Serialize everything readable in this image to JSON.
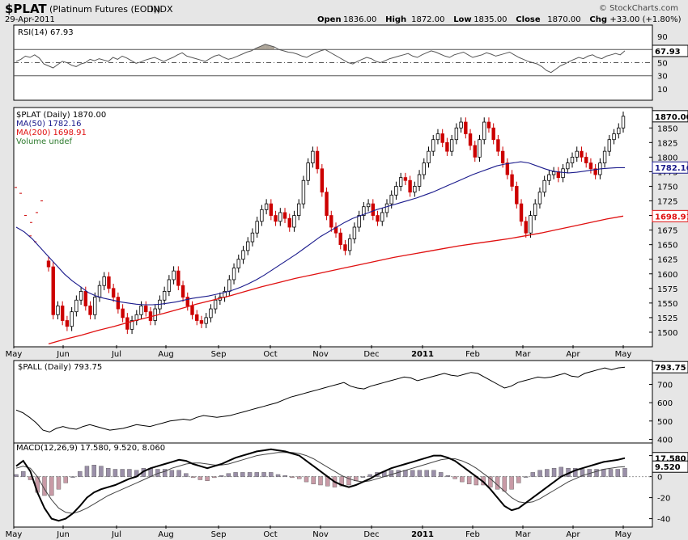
{
  "header": {
    "symbol": "$PLAT",
    "name": "(Platinum Futures (EOD))",
    "exchange": "INDX",
    "date": "29-Apr-2011",
    "source": "© StockCharts.com",
    "ohlc": [
      {
        "label": "Open",
        "value": "1836.00"
      },
      {
        "label": "High",
        "value": "1872.00"
      },
      {
        "label": "Low",
        "value": "1835.00"
      },
      {
        "label": "Close",
        "value": "1870.00"
      },
      {
        "label": "Chg",
        "value": "+33.00 (+1.80%)"
      }
    ]
  },
  "months": [
    "May",
    "Jun",
    "Jul",
    "Aug",
    "Sep",
    "Oct",
    "Nov",
    "Dec",
    "2011",
    "Feb",
    "Mar",
    "Apr",
    "May"
  ],
  "colors": {
    "up": "#000000",
    "down": "#cc0000",
    "ma50": "#1a1a8c",
    "ma200": "#e01010",
    "rsi": "#555555",
    "panel_bg": "#ffffff",
    "page_bg": "#e6e6e6"
  },
  "chart_data": [
    {
      "id": "rsi",
      "type": "line",
      "legend": "RSI(14) 67.93",
      "last_value": "67.93",
      "ylim": [
        0,
        100
      ],
      "ticks": [
        10,
        30,
        50,
        70,
        90
      ],
      "levels": [
        30,
        70
      ],
      "series": [
        {
          "name": "RSI(14)",
          "values": [
            52,
            55,
            60,
            58,
            62,
            57,
            48,
            45,
            42,
            47,
            52,
            50,
            46,
            44,
            48,
            50,
            55,
            53,
            56,
            54,
            52,
            58,
            55,
            60,
            57,
            53,
            49,
            51,
            54,
            56,
            58,
            55,
            52,
            55,
            58,
            62,
            65,
            60,
            58,
            56,
            54,
            52,
            56,
            60,
            62,
            58,
            55,
            57,
            60,
            63,
            66,
            68,
            72,
            75,
            78,
            76,
            74,
            70,
            68,
            66,
            65,
            63,
            60,
            58,
            62,
            65,
            68,
            70,
            66,
            62,
            58,
            54,
            50,
            48,
            52,
            55,
            58,
            56,
            52,
            50,
            53,
            56,
            58,
            60,
            62,
            64,
            60,
            58,
            62,
            65,
            68,
            66,
            63,
            60,
            58,
            62,
            64,
            66,
            62,
            58,
            60,
            62,
            65,
            63,
            60,
            62,
            64,
            66,
            62,
            58,
            55,
            52,
            50,
            48,
            44,
            38,
            35,
            40,
            45,
            48,
            52,
            55,
            58,
            56,
            60,
            62,
            58,
            56,
            60,
            62,
            64,
            62,
            68
          ]
        }
      ]
    },
    {
      "id": "price",
      "type": "candlestick",
      "legend": [
        {
          "text": "$PLAT (Daily) 1870.00",
          "color": "#000000"
        },
        {
          "text": "MA(50) 1782.16",
          "color": "#1a1a8c"
        },
        {
          "text": "MA(200) 1698.91",
          "color": "#e01010"
        },
        {
          "text": "Volume undef",
          "color": "#2d7a2d"
        }
      ],
      "ylim": [
        1475,
        1885
      ],
      "ticks": [
        "1500",
        "1525",
        "1550",
        "1575",
        "1600",
        "1625",
        "1650",
        "1675",
        "1700",
        "1725",
        "1750",
        "1775",
        "1800",
        "1825",
        "1850"
      ],
      "badges": [
        {
          "value": 1870.0,
          "label": "1870.00",
          "color": "#000000"
        },
        {
          "value": 1782.16,
          "label": "1782.16",
          "color": "#1a1a8c"
        },
        {
          "value": 1698.91,
          "label": "1698.91",
          "color": "#e01010"
        }
      ],
      "closes": [
        1612,
        1530,
        1545,
        1520,
        1510,
        1535,
        1555,
        1570,
        1545,
        1530,
        1560,
        1580,
        1595,
        1575,
        1560,
        1540,
        1525,
        1505,
        1520,
        1530,
        1545,
        1535,
        1520,
        1540,
        1555,
        1570,
        1590,
        1605,
        1580,
        1560,
        1545,
        1530,
        1520,
        1515,
        1525,
        1540,
        1555,
        1560,
        1570,
        1590,
        1610,
        1625,
        1640,
        1655,
        1670,
        1690,
        1710,
        1720,
        1700,
        1690,
        1705,
        1695,
        1680,
        1700,
        1720,
        1760,
        1790,
        1810,
        1780,
        1740,
        1700,
        1680,
        1670,
        1650,
        1640,
        1660,
        1680,
        1700,
        1715,
        1720,
        1700,
        1690,
        1705,
        1720,
        1735,
        1750,
        1765,
        1760,
        1740,
        1750,
        1770,
        1790,
        1810,
        1830,
        1840,
        1825,
        1810,
        1830,
        1850,
        1860,
        1840,
        1820,
        1800,
        1830,
        1860,
        1850,
        1830,
        1810,
        1790,
        1770,
        1750,
        1720,
        1690,
        1670,
        1700,
        1720,
        1740,
        1760,
        1770,
        1775,
        1765,
        1780,
        1790,
        1800,
        1810,
        1800,
        1790,
        1780,
        1770,
        1790,
        1810,
        1830,
        1840,
        1850,
        1870
      ],
      "ma50": [
        1680,
        1672,
        1660,
        1645,
        1630,
        1615,
        1600,
        1588,
        1578,
        1568,
        1562,
        1558,
        1555,
        1552,
        1550,
        1548,
        1547,
        1547,
        1548,
        1550,
        1552,
        1555,
        1558,
        1560,
        1562,
        1565,
        1568,
        1572,
        1577,
        1583,
        1590,
        1598,
        1607,
        1616,
        1625,
        1634,
        1644,
        1654,
        1664,
        1672,
        1680,
        1688,
        1695,
        1700,
        1705,
        1710,
        1714,
        1718,
        1722,
        1726,
        1730,
        1735,
        1740,
        1746,
        1752,
        1758,
        1764,
        1770,
        1775,
        1780,
        1785,
        1788,
        1790,
        1792,
        1790,
        1785,
        1780,
        1776,
        1774,
        1773,
        1774,
        1776,
        1778,
        1780,
        1781,
        1782,
        1782
      ],
      "ma200": [
        1480,
        1488,
        1495,
        1503,
        1510,
        1518,
        1525,
        1532,
        1540,
        1548,
        1555,
        1562,
        1570,
        1578,
        1585,
        1592,
        1598,
        1604,
        1610,
        1616,
        1622,
        1628,
        1633,
        1638,
        1643,
        1648,
        1652,
        1656,
        1660,
        1665,
        1670,
        1676,
        1682,
        1688,
        1694,
        1699
      ],
      "closes_start_date": "2010-05-14"
    },
    {
      "id": "pall",
      "type": "line",
      "legend": "$PALL (Daily) 793.75",
      "last_value": "793.75",
      "ylim": [
        380,
        830
      ],
      "ticks": [
        "400",
        "500",
        "600",
        "700"
      ],
      "series": [
        {
          "name": "$PALL (Daily)",
          "values": [
            560,
            545,
            520,
            490,
            450,
            440,
            460,
            470,
            460,
            455,
            470,
            480,
            470,
            460,
            450,
            455,
            460,
            470,
            480,
            475,
            470,
            480,
            490,
            500,
            505,
            510,
            505,
            520,
            530,
            525,
            520,
            525,
            530,
            540,
            550,
            560,
            570,
            580,
            590,
            600,
            615,
            630,
            640,
            650,
            660,
            670,
            680,
            690,
            700,
            710,
            690,
            680,
            675,
            690,
            700,
            710,
            720,
            730,
            740,
            735,
            720,
            730,
            740,
            750,
            760,
            750,
            745,
            755,
            765,
            760,
            740,
            720,
            700,
            680,
            690,
            710,
            720,
            730,
            740,
            735,
            740,
            750,
            760,
            745,
            740,
            760,
            770,
            780,
            790,
            780,
            790,
            793.75
          ]
        }
      ]
    },
    {
      "id": "macd",
      "type": "line",
      "legend": [
        {
          "text": "MACD(12,26,9) 17.580, 9.520, 8.060",
          "color": "#000000"
        }
      ],
      "ylim": [
        -48,
        32
      ],
      "ticks": [
        "20",
        "0",
        "-20",
        "-40"
      ],
      "badges": [
        {
          "value": 17.58,
          "label": "17.580",
          "color": "#000000"
        },
        {
          "value": 9.52,
          "label": "9.520",
          "color": "#000000"
        }
      ],
      "series": [
        {
          "name": "MACD",
          "values": [
            10,
            15,
            5,
            -15,
            -30,
            -40,
            -42,
            -40,
            -35,
            -28,
            -20,
            -15,
            -12,
            -10,
            -8,
            -5,
            -2,
            0,
            5,
            8,
            10,
            12,
            14,
            16,
            15,
            12,
            10,
            8,
            10,
            12,
            15,
            18,
            20,
            22,
            24,
            25,
            26,
            25,
            24,
            22,
            20,
            15,
            10,
            5,
            0,
            -5,
            -8,
            -10,
            -8,
            -5,
            -2,
            2,
            5,
            8,
            10,
            12,
            14,
            16,
            18,
            20,
            20,
            18,
            15,
            10,
            5,
            0,
            -5,
            -12,
            -20,
            -28,
            -32,
            -30,
            -25,
            -20,
            -15,
            -10,
            -5,
            0,
            3,
            6,
            8,
            10,
            12,
            14,
            15,
            16,
            17.58
          ]
        },
        {
          "name": "Signal",
          "values": [
            8,
            10,
            8,
            0,
            -12,
            -22,
            -30,
            -34,
            -35,
            -33,
            -30,
            -26,
            -22,
            -18,
            -15,
            -12,
            -9,
            -6,
            -3,
            0,
            3,
            5,
            8,
            10,
            12,
            13,
            13,
            12,
            11,
            11,
            12,
            14,
            16,
            18,
            20,
            21,
            22,
            23,
            23,
            23,
            22,
            20,
            17,
            13,
            9,
            5,
            1,
            -2,
            -4,
            -5,
            -4,
            -2,
            0,
            2,
            4,
            6,
            8,
            10,
            12,
            14,
            16,
            17,
            17,
            15,
            12,
            8,
            3,
            -2,
            -8,
            -14,
            -20,
            -24,
            -25,
            -24,
            -21,
            -17,
            -13,
            -9,
            -5,
            -2,
            1,
            3,
            5,
            7,
            8,
            9,
            9.52
          ]
        }
      ]
    }
  ]
}
